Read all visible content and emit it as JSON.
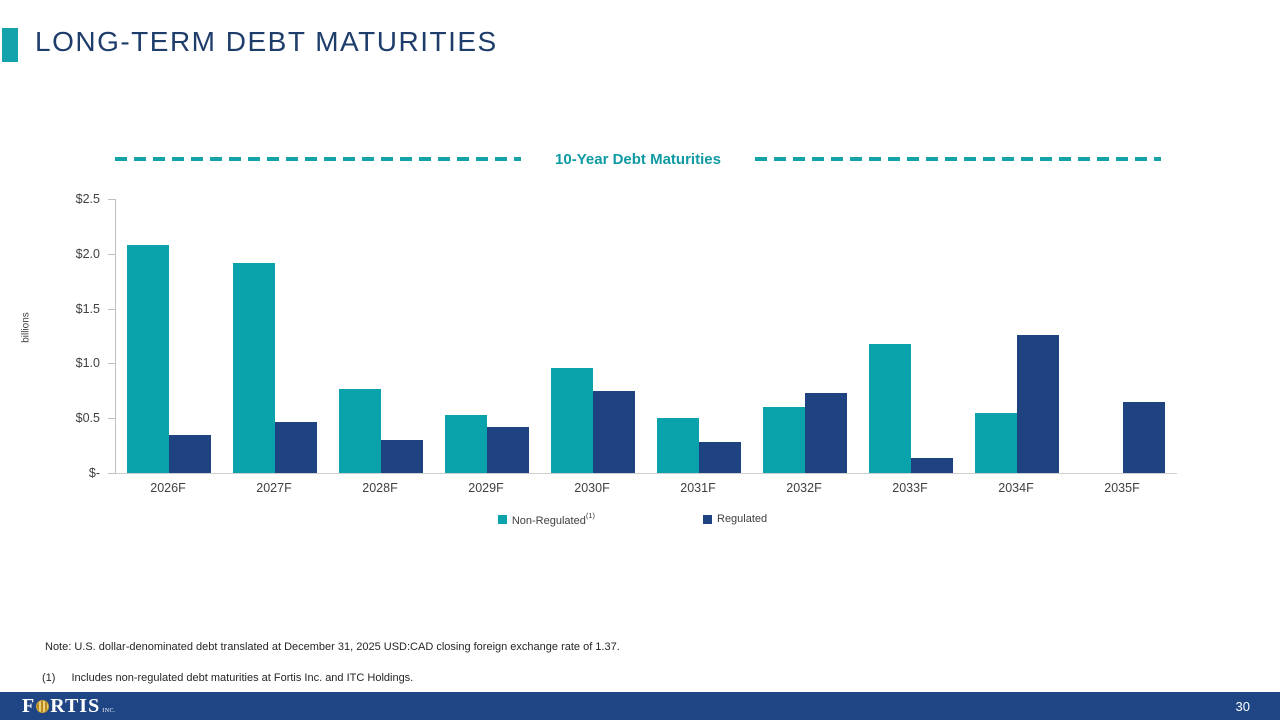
{
  "slide": {
    "title": "LONG-TERM DEBT MATURITIES",
    "page_number": "30",
    "note": "Note: U.S. dollar-denominated debt translated at December 31, 2025 USD:CAD closing foreign exchange rate of 1.37.",
    "footnote_marker": "(1)",
    "footnote_text": "Includes non-regulated debt maturities at Fortis Inc. and ITC Holdings.",
    "logo": {
      "brand_f": "F",
      "brand_rest": "RTIS",
      "suffix": "INC."
    }
  },
  "colors": {
    "accent_teal": "#14a3ab",
    "bar_teal": "#0aa2ab",
    "bar_navy": "#1f4380",
    "title_navy": "#1e3d6b",
    "chart_title_teal": "#0f9aa3",
    "footer_blue": "#1f4585",
    "axis_gray": "#bfbfbf",
    "text_gray": "#404040",
    "logo_gold": "#d9a92f"
  },
  "chart_data": {
    "type": "bar",
    "title": "10-Year Debt Maturities",
    "xlabel": "",
    "ylabel": "billions",
    "ylim": [
      0,
      2.5
    ],
    "ytick_values": [
      2.5,
      2.0,
      1.5,
      1.0,
      0.5,
      0
    ],
    "ytick_labels": [
      "$2.5",
      "$2.0",
      "$1.5",
      "$1.0",
      "$0.5",
      "$-"
    ],
    "grid": false,
    "legend_position": "bottom",
    "categories": [
      "2026F",
      "2027F",
      "2028F",
      "2029F",
      "2030F",
      "2031F",
      "2032F",
      "2033F",
      "2034F",
      "2035F"
    ],
    "series": [
      {
        "name": "Non-Regulated",
        "legend_sup": "(1)",
        "color": "#0aa2ab",
        "values": [
          2.08,
          1.92,
          0.77,
          0.53,
          0.96,
          0.5,
          0.6,
          1.18,
          0.55,
          0.0
        ]
      },
      {
        "name": "Regulated",
        "legend_sup": "",
        "color": "#1f4380",
        "values": [
          0.35,
          0.47,
          0.3,
          0.42,
          0.75,
          0.28,
          0.73,
          0.14,
          1.26,
          0.65
        ]
      }
    ]
  }
}
